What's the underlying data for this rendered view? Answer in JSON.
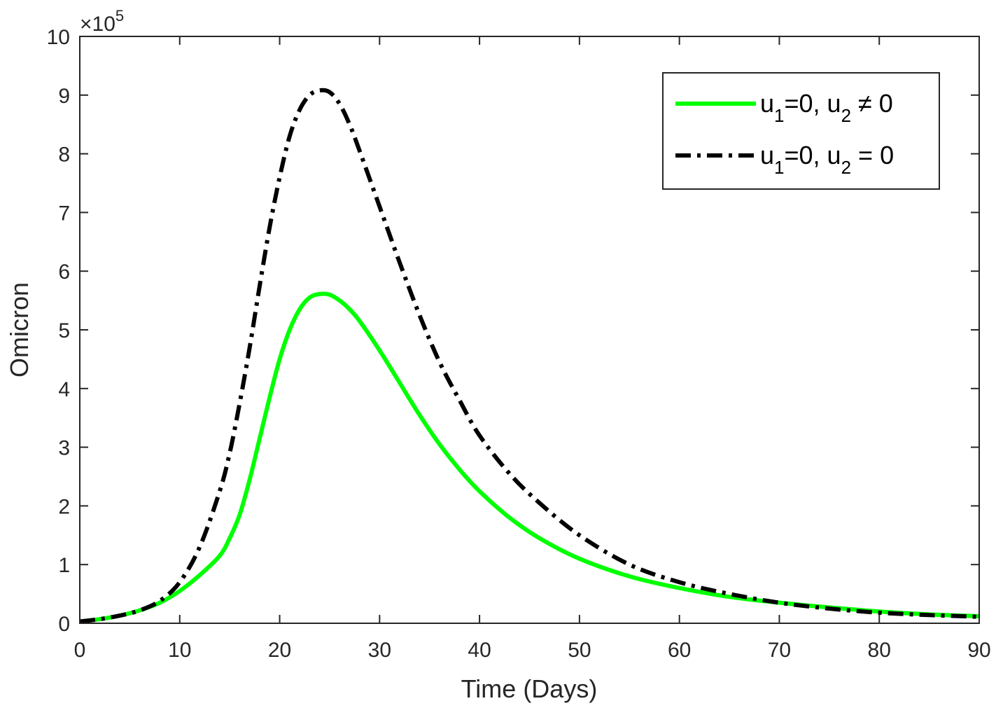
{
  "chart_data": {
    "type": "line",
    "xlabel": "Time (Days)",
    "ylabel": "Omicron",
    "y_exponent_label": "×10",
    "y_exponent_power": "5",
    "xlim": [
      0,
      90
    ],
    "ylim": [
      0,
      10
    ],
    "y_multiplier": 100000,
    "xticks": [
      "0",
      "10",
      "20",
      "30",
      "40",
      "50",
      "60",
      "70",
      "80",
      "90"
    ],
    "yticks": [
      "0",
      "1",
      "2",
      "3",
      "4",
      "5",
      "6",
      "7",
      "8",
      "9",
      "10"
    ],
    "grid": false,
    "legend_position": "top-right",
    "series": [
      {
        "name": "u1=0, u2 ≠ 0",
        "legend": {
          "pre": "u",
          "sub1": "1",
          "mid": "=0, u",
          "sub2": "2",
          "post": " ≠ 0"
        },
        "color": "#00ff00",
        "style": "solid",
        "x": [
          0,
          2,
          4,
          6,
          8,
          10,
          12,
          14,
          15,
          16,
          17,
          18,
          19,
          20,
          21,
          22,
          23,
          24,
          25,
          26,
          27,
          28,
          30,
          32,
          34,
          36,
          38,
          40,
          43,
          46,
          50,
          55,
          60,
          65,
          70,
          75,
          80,
          85,
          90
        ],
        "y": [
          0.03,
          0.07,
          0.13,
          0.22,
          0.35,
          0.55,
          0.82,
          1.15,
          1.45,
          1.85,
          2.45,
          3.15,
          3.85,
          4.5,
          5.0,
          5.35,
          5.55,
          5.61,
          5.6,
          5.5,
          5.35,
          5.15,
          4.65,
          4.1,
          3.55,
          3.05,
          2.62,
          2.25,
          1.8,
          1.45,
          1.1,
          0.8,
          0.6,
          0.45,
          0.35,
          0.27,
          0.2,
          0.15,
          0.12
        ]
      },
      {
        "name": "u1=0, u2 = 0",
        "legend": {
          "pre": "u",
          "sub1": "1",
          "mid": "=0, u",
          "sub2": "2",
          "post": " = 0"
        },
        "color": "#000000",
        "style": "dashdot",
        "x": [
          0,
          2,
          4,
          6,
          8,
          10,
          12,
          14,
          15,
          16,
          17,
          18,
          19,
          20,
          21,
          22,
          23,
          24,
          25,
          26,
          27,
          28,
          30,
          32,
          34,
          36,
          38,
          40,
          43,
          46,
          50,
          55,
          60,
          65,
          70,
          75,
          80,
          85,
          90
        ],
        "y": [
          0.03,
          0.07,
          0.13,
          0.22,
          0.38,
          0.7,
          1.3,
          2.25,
          2.9,
          3.75,
          4.7,
          5.75,
          6.75,
          7.6,
          8.3,
          8.75,
          9.0,
          9.08,
          9.05,
          8.85,
          8.5,
          8.05,
          7.1,
          6.15,
          5.25,
          4.45,
          3.8,
          3.2,
          2.55,
          2.05,
          1.5,
          1.0,
          0.7,
          0.5,
          0.35,
          0.25,
          0.18,
          0.14,
          0.11
        ]
      }
    ]
  }
}
